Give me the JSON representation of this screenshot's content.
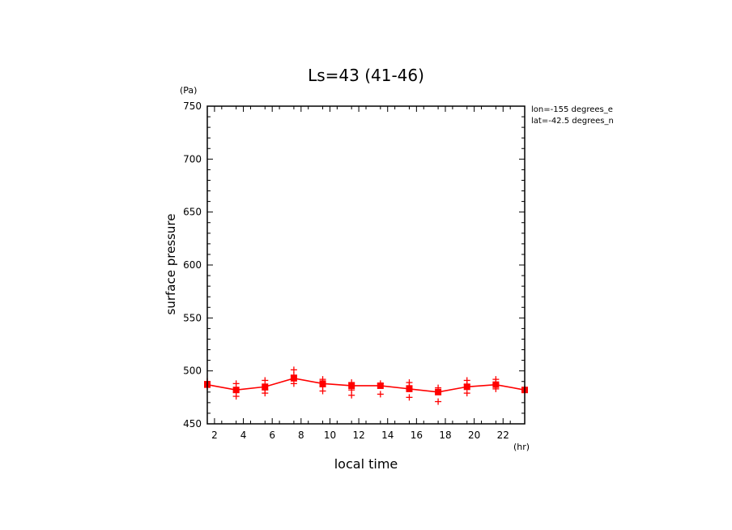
{
  "chart_data": {
    "type": "line",
    "title": "Ls=43 (41-46)",
    "xlabel": "local time",
    "ylabel": "surface pressure",
    "x_unit": "(hr)",
    "y_unit": "(Pa)",
    "annotations": [
      "lon=-155 degrees_e",
      "lat=-42.5 degrees_n"
    ],
    "xlim": [
      1.5,
      23.5
    ],
    "ylim": [
      450,
      750
    ],
    "x_ticks": [
      2,
      4,
      6,
      8,
      10,
      12,
      14,
      16,
      18,
      20,
      22
    ],
    "y_ticks": [
      450,
      500,
      550,
      600,
      650,
      700,
      750
    ],
    "grid": false,
    "color": "#ff0000",
    "series": [
      {
        "x": [
          1.5,
          3.5,
          5.5,
          7.5,
          9.5,
          11.5,
          13.5,
          15.5,
          17.5,
          19.5,
          21.5,
          23.5
        ],
        "values": [
          487,
          482,
          485,
          493,
          488,
          486,
          486,
          483,
          480,
          485,
          487,
          482
        ]
      }
    ],
    "scatter": {
      "x": [
        1.5,
        1.5,
        3.5,
        3.5,
        3.5,
        5.5,
        5.5,
        5.5,
        7.5,
        7.5,
        7.5,
        9.5,
        9.5,
        9.5,
        11.5,
        11.5,
        11.5,
        13.5,
        13.5,
        15.5,
        15.5,
        15.5,
        17.5,
        17.5,
        19.5,
        19.5,
        19.5,
        21.5,
        21.5,
        21.5,
        23.5
      ],
      "y": [
        490,
        485,
        488,
        480,
        476,
        491,
        482,
        479,
        501,
        496,
        488,
        492,
        485,
        481,
        489,
        482,
        477,
        488,
        478,
        489,
        486,
        475,
        484,
        471,
        491,
        487,
        479,
        492,
        488,
        483,
        483
      ]
    }
  }
}
